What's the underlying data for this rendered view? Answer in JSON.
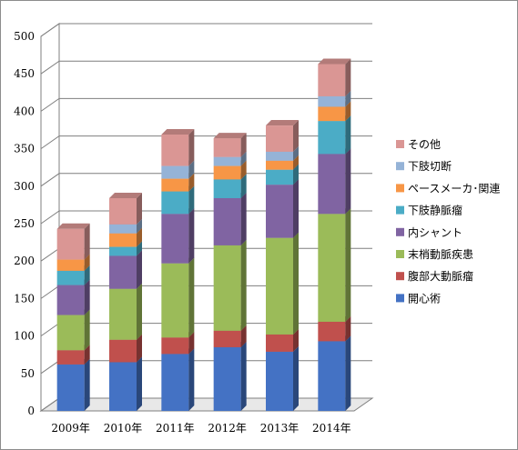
{
  "chart_data": {
    "type": "bar",
    "stacked": true,
    "three_d": true,
    "categories": [
      "2009年",
      "2010年",
      "2011年",
      "2012年",
      "2013年",
      "2014年"
    ],
    "ylim": [
      0,
      500
    ],
    "yticks": [
      "0",
      "50",
      "100",
      "150",
      "200",
      "250",
      "300",
      "350",
      "400",
      "450",
      "500"
    ],
    "grid": true,
    "legend_position": "right",
    "series": [
      {
        "name": "開心術",
        "color": "#4472c4",
        "values": [
          62,
          65,
          76,
          85,
          79,
          93
        ]
      },
      {
        "name": "腹部大動脈瘤",
        "color": "#c0504d",
        "values": [
          19,
          30,
          22,
          22,
          23,
          26
        ]
      },
      {
        "name": "末梢動脈疾患",
        "color": "#9bbb59",
        "values": [
          47,
          68,
          99,
          114,
          129,
          144
        ]
      },
      {
        "name": "内シャント",
        "color": "#8064a2",
        "values": [
          40,
          44,
          66,
          63,
          71,
          80
        ]
      },
      {
        "name": "下肢静脈瘤",
        "color": "#4bacc6",
        "values": [
          19,
          12,
          30,
          25,
          20,
          44
        ]
      },
      {
        "name": "ペースメーカ･関連",
        "color": "#f79646",
        "values": [
          15,
          18,
          17,
          18,
          12,
          19
        ]
      },
      {
        "name": "下肢切断",
        "color": "#95b3d7",
        "values": [
          0,
          12,
          17,
          12,
          12,
          14
        ]
      },
      {
        "name": "その他",
        "color": "#da9694",
        "values": [
          41,
          35,
          42,
          25,
          35,
          43
        ]
      }
    ]
  }
}
